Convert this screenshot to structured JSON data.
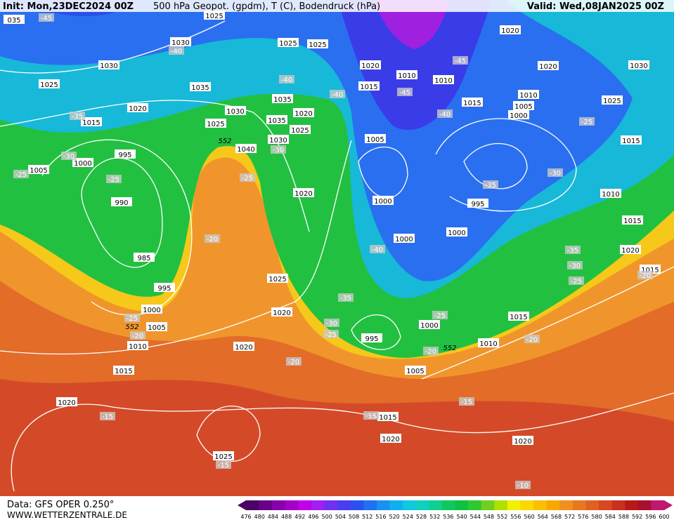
{
  "header": {
    "init": "Init: Mon,23DEC2024 00Z",
    "title": "500 hPa Geopot. (gpdm), T (C), Bodendruck (hPa)",
    "valid": "Valid: Wed,08JAN2025 00Z"
  },
  "footer": {
    "data": "Data: GFS OPER 0.250°",
    "site": "WWW.WETTERZENTRALE.DE"
  },
  "scale": {
    "labels": [
      476,
      480,
      484,
      488,
      492,
      496,
      500,
      504,
      508,
      512,
      516,
      520,
      524,
      528,
      532,
      536,
      540,
      544,
      548,
      552,
      556,
      560,
      564,
      568,
      572,
      576,
      580,
      584,
      588,
      592,
      596,
      600
    ],
    "colors": [
      "#4b0066",
      "#6a0088",
      "#8800aa",
      "#a400c8",
      "#c000e6",
      "#a020f0",
      "#7030f0",
      "#4a3cf0",
      "#2c50f0",
      "#2070f0",
      "#1a90f0",
      "#10b0f0",
      "#10c8e0",
      "#10d0c0",
      "#10d090",
      "#10c860",
      "#10c040",
      "#30c830",
      "#70d020",
      "#b0e000",
      "#f0f000",
      "#f8d800",
      "#f8c000",
      "#f8a800",
      "#f09020",
      "#e87820",
      "#e06020",
      "#d84820",
      "#c83020",
      "#b81818",
      "#a81030",
      "#c01870"
    ]
  },
  "isobars": [
    "035",
    "1025",
    "1030",
    "1030",
    "1025",
    "1035",
    "1020",
    "1015",
    "1030",
    "1025",
    "1035",
    "1035",
    "1030",
    "1040",
    "1025",
    "1020",
    "1025",
    "1025",
    "1020",
    "1015",
    "1010",
    "1010",
    "1020",
    "1020",
    "1030",
    "1025",
    "1010",
    "1005",
    "1000",
    "1015",
    "1015",
    "1010",
    "1015",
    "1020",
    "1015",
    "1005",
    "1000",
    "995",
    "1000",
    "1000",
    "1020",
    "995",
    "1000",
    "1005",
    "990",
    "985",
    "995",
    "1000",
    "1005",
    "1010",
    "1015",
    "1020",
    "1020",
    "1020",
    "1025",
    "995",
    "1000",
    "1015",
    "1010",
    "1005",
    "1015",
    "1020",
    "1020",
    "1025"
  ],
  "temperatures": [
    "-45",
    "-40",
    "-35",
    "-30",
    "-25",
    "-25",
    "-20",
    "-25",
    "-20",
    "-25",
    "-30",
    "-40",
    "-45",
    "-45",
    "-40",
    "-35",
    "-30",
    "-25",
    "-35",
    "-30",
    "-25",
    "-40",
    "-35",
    "-30",
    "-25",
    "-20",
    "-20",
    "-25",
    "-20",
    "-15",
    "-15",
    "-15",
    "-15",
    "-10",
    "-20",
    "-40"
  ],
  "heights": [
    "552",
    "552",
    "552"
  ]
}
